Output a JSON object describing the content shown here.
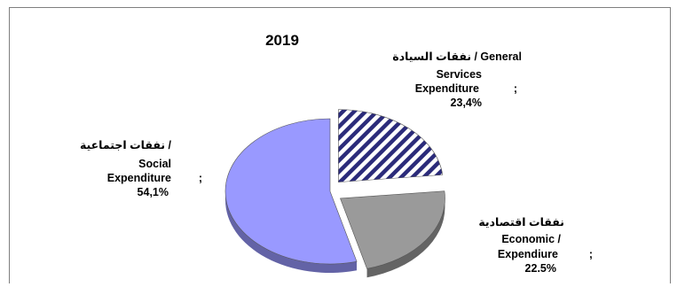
{
  "chart_data": {
    "type": "pie",
    "title": "2019",
    "slices": [
      {
        "label_lines": [
          "نفقات السيادة /  General",
          "Services",
          "Expenditure",
          "23,4%"
        ],
        "separator": ";",
        "value": 23.4,
        "fill": "hatch",
        "color": "#2b2b7a",
        "exploded": true
      },
      {
        "label_lines": [
          "نفقات   اقتصادية",
          "Economic /",
          "Expendiure",
          "22.5%"
        ],
        "separator": ";",
        "value": 22.5,
        "fill": "solid",
        "color": "#9a9a9a",
        "exploded": true
      },
      {
        "label_lines": [
          "نفقات اجتماعية /",
          "Social",
          "Expenditure",
          "54,1%"
        ],
        "separator": ";",
        "value": 54.1,
        "fill": "solid",
        "color": "#9999ff",
        "exploded": false
      }
    ],
    "legend": "none"
  }
}
